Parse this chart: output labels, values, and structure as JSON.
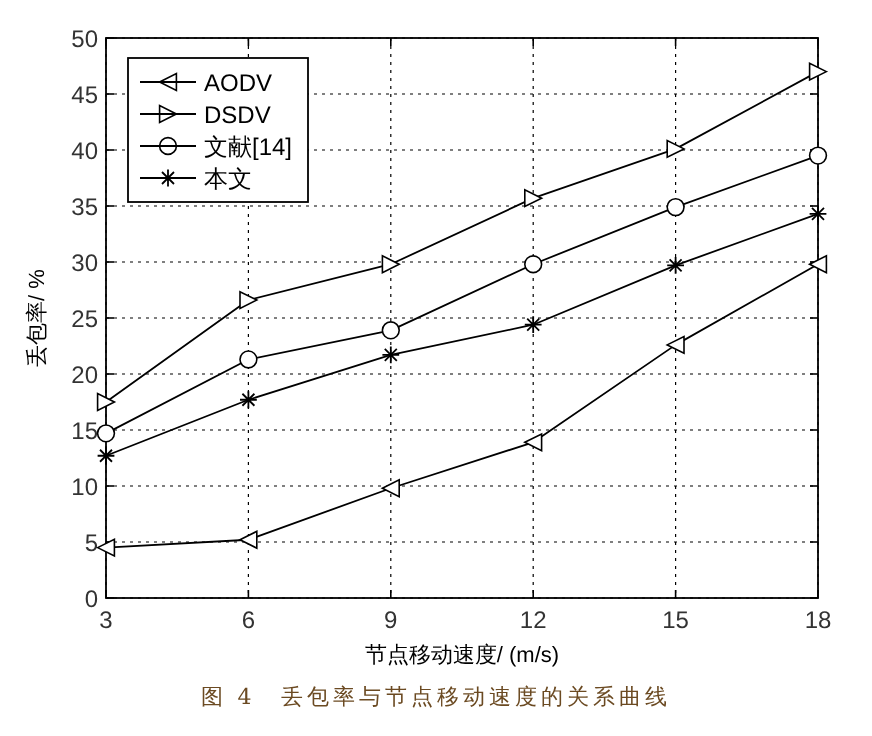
{
  "chart_data": {
    "type": "line",
    "xlabel": "节点移动速度/ (m/s)",
    "ylabel": "丢包率/ %",
    "annotations": [
      "图 4　丢包率与节点移动速度的关系曲线"
    ],
    "x": [
      3,
      6,
      9,
      12,
      15,
      18
    ],
    "xlim": [
      3,
      18
    ],
    "xticks": [
      3,
      6,
      9,
      12,
      15,
      18
    ],
    "ylim": [
      0,
      50
    ],
    "yticks": [
      0,
      5,
      10,
      15,
      20,
      25,
      30,
      35,
      40,
      45,
      50
    ],
    "grid": true,
    "legend": "top left",
    "series": [
      {
        "name": "AODV",
        "color": "#000000",
        "marker": "triangle",
        "values": [
          4.5,
          5.2,
          9.8,
          13.9,
          22.6,
          29.8
        ]
      },
      {
        "name": "DSDV",
        "color": "#000000",
        "marker": "triangle",
        "values": [
          17.5,
          26.6,
          29.8,
          35.7,
          40.1,
          47.0
        ]
      },
      {
        "name": "文献[14]",
        "color": "#000000",
        "marker": "circle",
        "values": [
          14.7,
          21.3,
          23.9,
          29.8,
          34.9,
          39.5
        ]
      },
      {
        "name": "本文",
        "color": "#000000",
        "marker": "cross",
        "values": [
          12.7,
          17.7,
          21.7,
          24.4,
          29.7,
          34.3
        ]
      }
    ]
  }
}
